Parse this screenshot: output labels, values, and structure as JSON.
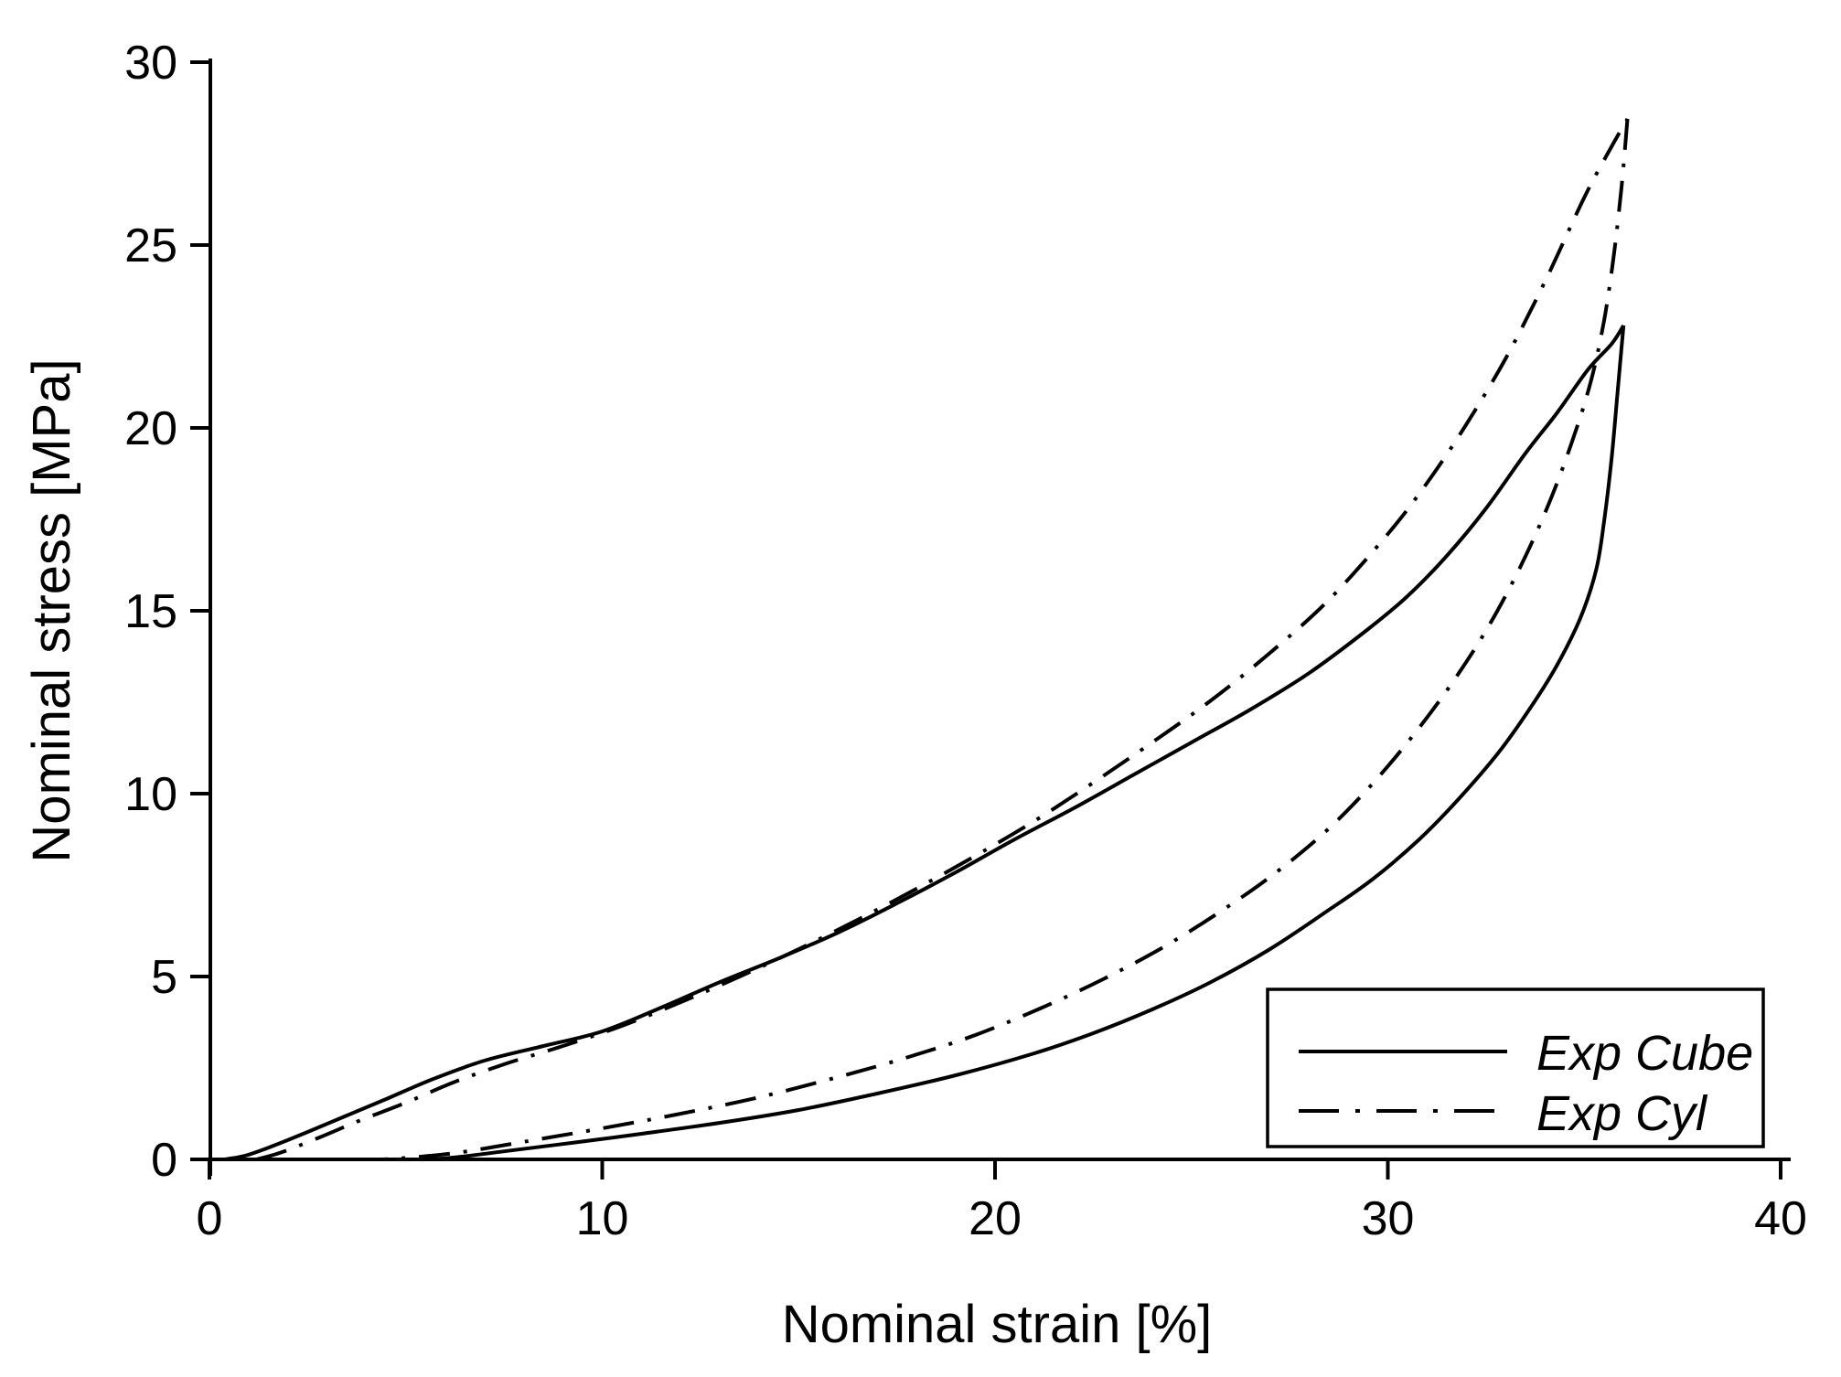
{
  "page": {
    "background": "#ffffff",
    "line_color": "#000000"
  },
  "chart_data": {
    "type": "line",
    "title": "",
    "xlabel": "Nominal strain [%]",
    "ylabel": "Nominal stress [MPa]",
    "xlim": [
      0,
      40
    ],
    "ylim": [
      0,
      30
    ],
    "x_ticks": [
      0,
      10,
      20,
      30,
      40
    ],
    "y_ticks": [
      0,
      5,
      10,
      15,
      20,
      25,
      30
    ],
    "grid": false,
    "legend_position": "lower-right",
    "axis_style": "L-shaped, ticks outward, no frame, no gridlines",
    "series": [
      {
        "name": "Exp Cube",
        "line_style": "solid",
        "color": "#000000",
        "loading": [
          [
            0.4,
            0
          ],
          [
            0.9,
            0.1
          ],
          [
            1.5,
            0.32
          ],
          [
            2.5,
            0.75
          ],
          [
            3.5,
            1.2
          ],
          [
            4.5,
            1.65
          ],
          [
            5.7,
            2.2
          ],
          [
            7,
            2.7
          ],
          [
            8.5,
            3.1
          ],
          [
            10,
            3.5
          ],
          [
            11.5,
            4.15
          ],
          [
            13,
            4.85
          ],
          [
            14.5,
            5.5
          ],
          [
            16,
            6.2
          ],
          [
            17.5,
            7.0
          ],
          [
            19,
            7.85
          ],
          [
            20.5,
            8.75
          ],
          [
            22,
            9.6
          ],
          [
            23.5,
            10.5
          ],
          [
            25,
            11.4
          ],
          [
            26.5,
            12.3
          ],
          [
            28,
            13.3
          ],
          [
            29.5,
            14.5
          ],
          [
            30.5,
            15.4
          ],
          [
            31.5,
            16.5
          ],
          [
            32.5,
            17.8
          ],
          [
            33.5,
            19.3
          ],
          [
            34.3,
            20.4
          ],
          [
            35.1,
            21.6
          ],
          [
            35.7,
            22.3
          ],
          [
            36.0,
            22.8
          ]
        ],
        "unloading": [
          [
            36.0,
            22.8
          ],
          [
            35.85,
            21.0
          ],
          [
            35.7,
            19.2
          ],
          [
            35.5,
            17.4
          ],
          [
            35.3,
            16.1
          ],
          [
            34.9,
            14.8
          ],
          [
            34.3,
            13.5
          ],
          [
            33.6,
            12.3
          ],
          [
            32.8,
            11.1
          ],
          [
            31.8,
            9.85
          ],
          [
            30.8,
            8.75
          ],
          [
            29.6,
            7.65
          ],
          [
            28.4,
            6.75
          ],
          [
            27,
            5.75
          ],
          [
            25.5,
            4.85
          ],
          [
            24,
            4.1
          ],
          [
            22.5,
            3.45
          ],
          [
            21,
            2.9
          ],
          [
            19,
            2.3
          ],
          [
            17,
            1.8
          ],
          [
            15,
            1.35
          ],
          [
            13,
            1.0
          ],
          [
            11,
            0.7
          ],
          [
            9,
            0.42
          ],
          [
            7.5,
            0.22
          ],
          [
            6.3,
            0.06
          ],
          [
            5.5,
            0
          ]
        ]
      },
      {
        "name": "Exp Cyl",
        "line_style": "dash-dot",
        "color": "#000000",
        "loading": [
          [
            1.2,
            0
          ],
          [
            1.8,
            0.18
          ],
          [
            2.8,
            0.6
          ],
          [
            3.8,
            1.05
          ],
          [
            5,
            1.55
          ],
          [
            6.2,
            2.1
          ],
          [
            7.5,
            2.6
          ],
          [
            9,
            3.1
          ],
          [
            10.5,
            3.65
          ],
          [
            12,
            4.3
          ],
          [
            13.5,
            5.0
          ],
          [
            15,
            5.75
          ],
          [
            16.5,
            6.55
          ],
          [
            18,
            7.4
          ],
          [
            19.5,
            8.3
          ],
          [
            21,
            9.25
          ],
          [
            22.5,
            10.3
          ],
          [
            24,
            11.4
          ],
          [
            25.5,
            12.55
          ],
          [
            27,
            13.85
          ],
          [
            28.5,
            15.3
          ],
          [
            30,
            17.1
          ],
          [
            31,
            18.5
          ],
          [
            32,
            20.1
          ],
          [
            33,
            21.9
          ],
          [
            34,
            24.0
          ],
          [
            35,
            26.3
          ],
          [
            35.7,
            27.7
          ],
          [
            36.1,
            28.45
          ]
        ],
        "unloading": [
          [
            36.1,
            28.45
          ],
          [
            35.95,
            26.6
          ],
          [
            35.75,
            24.7
          ],
          [
            35.5,
            22.9
          ],
          [
            35.15,
            21.2
          ],
          [
            34.65,
            19.5
          ],
          [
            34.05,
            17.8
          ],
          [
            33.35,
            16.15
          ],
          [
            32.55,
            14.55
          ],
          [
            31.65,
            13.05
          ],
          [
            30.65,
            11.6
          ],
          [
            29.55,
            10.2
          ],
          [
            28.4,
            8.95
          ],
          [
            27.1,
            7.8
          ],
          [
            25.7,
            6.75
          ],
          [
            24.2,
            5.75
          ],
          [
            22.7,
            4.9
          ],
          [
            21.2,
            4.15
          ],
          [
            19.5,
            3.4
          ],
          [
            17.8,
            2.8
          ],
          [
            16,
            2.25
          ],
          [
            14,
            1.7
          ],
          [
            12,
            1.25
          ],
          [
            10,
            0.85
          ],
          [
            8,
            0.48
          ],
          [
            6.3,
            0.18
          ],
          [
            5,
            0.04
          ],
          [
            4.4,
            0
          ]
        ]
      }
    ]
  },
  "legend": {
    "items": [
      {
        "label": "Exp Cube",
        "line_style": "solid"
      },
      {
        "label": "Exp Cyl",
        "line_style": "dash-dot"
      }
    ]
  }
}
